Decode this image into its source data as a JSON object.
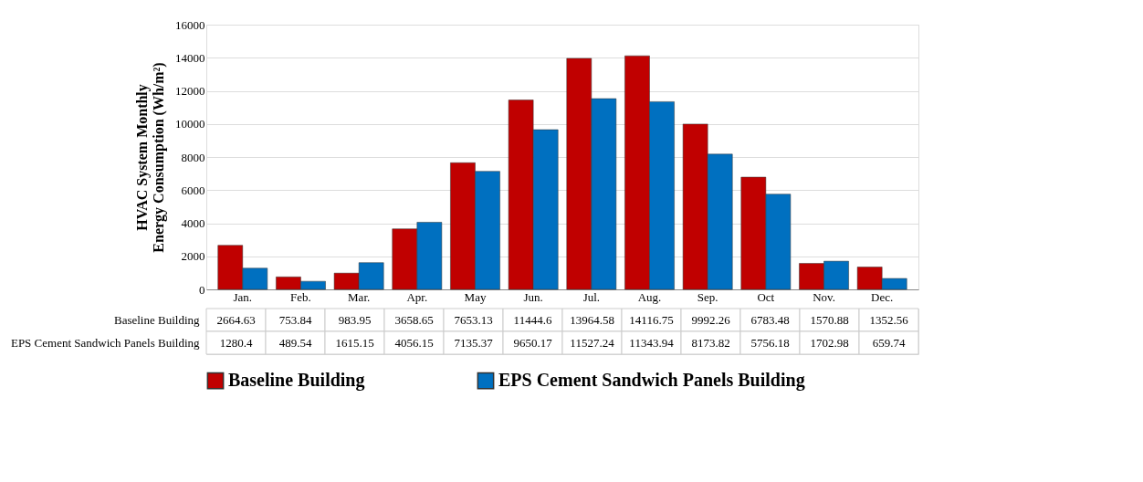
{
  "chart_data": {
    "type": "bar",
    "ylabel": "HVAC System Monthly\nEnergy Consumption (Wh/m²)",
    "categories": [
      "Jan.",
      "Feb.",
      "Mar.",
      "Apr.",
      "May",
      "Jun.",
      "Jul.",
      "Aug.",
      "Sep.",
      "Oct",
      "Nov.",
      "Dec."
    ],
    "series": [
      {
        "name": "Baseline Building",
        "color": "#c00000",
        "values": [
          2664.63,
          753.84,
          983.95,
          3658.65,
          7653.13,
          11444.6,
          13964.58,
          14116.75,
          9992.26,
          6783.48,
          1570.88,
          1352.56
        ]
      },
      {
        "name": "EPS Cement Sandwich Panels Building",
        "color": "#0070c0",
        "values": [
          1280.4,
          489.54,
          1615.15,
          4056.15,
          7135.37,
          9650.17,
          11527.24,
          11343.94,
          8173.82,
          5756.18,
          1702.98,
          659.74
        ]
      }
    ],
    "ylim": [
      0,
      16000
    ],
    "yticks": [
      0,
      2000,
      4000,
      6000,
      8000,
      10000,
      12000,
      14000,
      16000
    ],
    "grid": "y",
    "legend": "bottom",
    "data_labels": true
  }
}
